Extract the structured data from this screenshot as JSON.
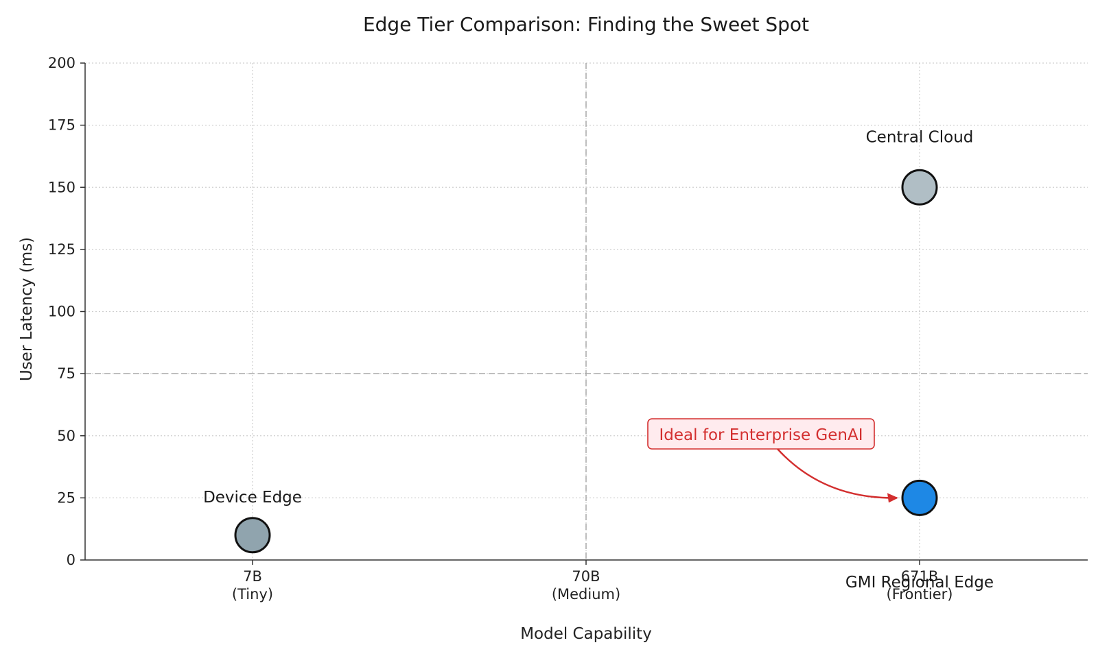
{
  "chart_data": {
    "type": "scatter",
    "title": "Edge Tier Comparison: Finding the Sweet Spot",
    "xlabel": "Model Capability",
    "ylabel": "User Latency (ms)",
    "ylim": [
      0,
      200
    ],
    "yticks": [
      0,
      25,
      50,
      75,
      100,
      125,
      150,
      175,
      200
    ],
    "categories": [
      "7B\n(Tiny)",
      "70B\n(Medium)",
      "671B\n(Frontier)"
    ],
    "grid": true,
    "reference_lines": {
      "x_category": 1,
      "y_value": 75
    },
    "points": [
      {
        "name": "Device Edge",
        "x": 0,
        "y": 10,
        "color": "#90A4AE"
      },
      {
        "name": "Central Cloud",
        "x": 2,
        "y": 150,
        "color": "#B0BEC5"
      },
      {
        "name": "GMI Regional Edge",
        "x": 2,
        "y": 25,
        "color": "#1E88E5"
      }
    ],
    "annotation": {
      "text": "Ideal for Enterprise GenAI",
      "target_point": 2,
      "color": "#D32F2F",
      "box_fill": "#FFEBEE"
    }
  }
}
